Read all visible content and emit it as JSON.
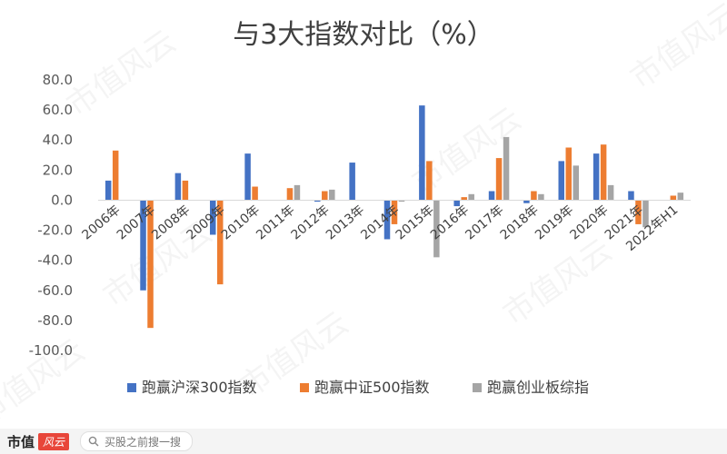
{
  "watermark": "市值风云",
  "footer": {
    "brand": "市值",
    "brand_mark": "风云",
    "search_text": "买股之前搜一搜"
  },
  "colors": {
    "series": [
      "#4472c4",
      "#ed7d31",
      "#a5a5a5"
    ],
    "axis": "#d9d9d9"
  },
  "chart_data": {
    "type": "bar",
    "title": "与3大指数对比（%）",
    "categories": [
      "2006年",
      "2007年",
      "2008年",
      "2009年",
      "2010年",
      "2011年",
      "2012年",
      "2013年",
      "2014年",
      "2015年",
      "2016年",
      "2017年",
      "2018年",
      "2019年",
      "2020年",
      "2021年",
      "2022年H1"
    ],
    "series": [
      {
        "name": "跑赢沪深300指数",
        "values": [
          13,
          -60,
          18,
          -23,
          31,
          0,
          -1,
          25,
          -26,
          63,
          -4,
          6,
          -2,
          26,
          31,
          6,
          0
        ]
      },
      {
        "name": "跑赢中证500指数",
        "values": [
          33,
          -85,
          13,
          -56,
          9,
          8,
          6,
          0,
          -16,
          26,
          2,
          28,
          6,
          35,
          37,
          -16,
          3
        ]
      },
      {
        "name": "跑赢创业板综指",
        "values": [
          0,
          0,
          0,
          0,
          0,
          10,
          7,
          0,
          -1,
          -38,
          4,
          42,
          4,
          23,
          10,
          -18,
          5
        ]
      }
    ],
    "yticks": [
      "80.0",
      "60.0",
      "40.0",
      "20.0",
      "0.0",
      "-20.0",
      "-40.0",
      "-60.0",
      "-80.0",
      "-100.0"
    ],
    "ylim": [
      -100,
      80
    ],
    "grid": false,
    "legend": "bottom"
  }
}
